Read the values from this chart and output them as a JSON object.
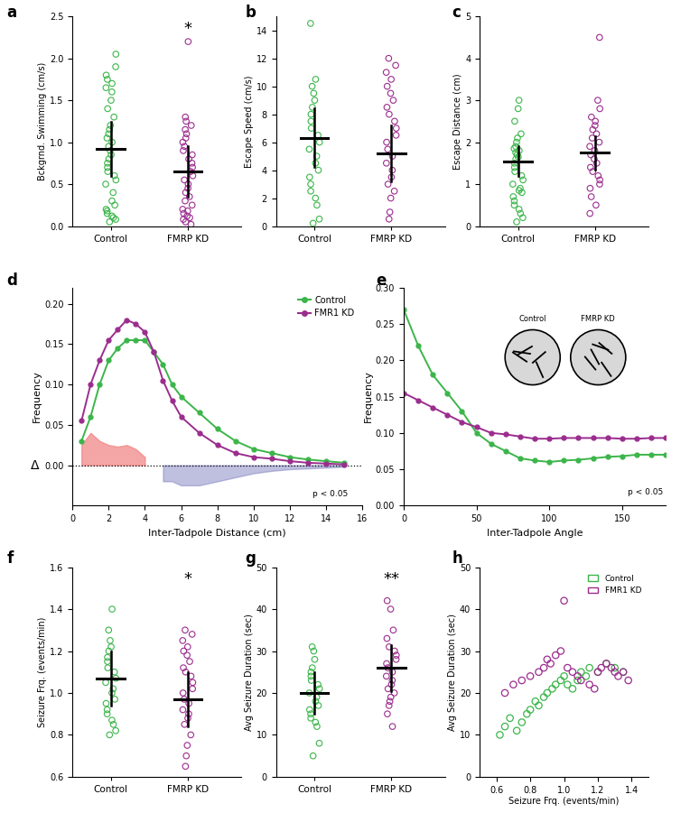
{
  "green": "#3cb54a",
  "purple": "#9b2d8e",
  "panel_a": {
    "control_mean": 0.92,
    "control_sem": 0.32,
    "fmrp_mean": 0.65,
    "fmrp_sem": 0.3,
    "control_pts": [
      0.05,
      0.08,
      0.1,
      0.12,
      0.15,
      0.18,
      0.2,
      0.25,
      0.3,
      0.4,
      0.5,
      0.55,
      0.6,
      0.65,
      0.7,
      0.75,
      0.8,
      0.85,
      0.9,
      0.95,
      1.0,
      1.05,
      1.1,
      1.15,
      1.2,
      1.3,
      1.4,
      1.5,
      1.6,
      1.65,
      1.7,
      1.75,
      1.8,
      1.9,
      2.05
    ],
    "fmrp_pts": [
      0.02,
      0.05,
      0.08,
      0.1,
      0.12,
      0.15,
      0.18,
      0.2,
      0.25,
      0.3,
      0.35,
      0.4,
      0.45,
      0.5,
      0.55,
      0.6,
      0.65,
      0.7,
      0.75,
      0.8,
      0.85,
      0.9,
      0.95,
      1.0,
      1.05,
      1.1,
      1.15,
      1.2,
      1.25,
      1.3,
      2.2
    ],
    "ylabel": "Bckgrnd. Swimming (cm/s)",
    "ylim": [
      0,
      2.5
    ],
    "yticks": [
      0.0,
      0.5,
      1.0,
      1.5,
      2.0,
      2.5
    ],
    "significance": "*"
  },
  "panel_b": {
    "control_mean": 6.3,
    "control_sem": 2.1,
    "fmrp_mean": 5.2,
    "fmrp_sem": 2.0,
    "control_pts": [
      0.2,
      0.5,
      1.5,
      2.0,
      2.5,
      3.0,
      3.5,
      4.0,
      4.5,
      5.0,
      5.5,
      6.0,
      6.5,
      7.0,
      7.5,
      8.0,
      8.5,
      9.0,
      9.5,
      10.0,
      10.5,
      14.5
    ],
    "fmrp_pts": [
      0.5,
      1.0,
      2.0,
      2.5,
      3.0,
      3.5,
      4.0,
      4.5,
      5.0,
      5.5,
      6.0,
      6.5,
      7.0,
      7.5,
      8.0,
      8.5,
      9.0,
      9.5,
      10.0,
      10.5,
      11.0,
      11.5,
      12.0
    ],
    "ylabel": "Escape Speed (cm/s)",
    "ylim": [
      0,
      15
    ],
    "yticks": [
      0,
      2,
      4,
      6,
      8,
      10,
      12,
      14
    ]
  },
  "panel_c": {
    "control_mean": 1.55,
    "control_sem": 0.35,
    "fmrp_mean": 1.75,
    "fmrp_sem": 0.4,
    "control_pts": [
      0.1,
      0.2,
      0.3,
      0.4,
      0.5,
      0.6,
      0.7,
      0.8,
      0.85,
      0.9,
      1.0,
      1.1,
      1.2,
      1.3,
      1.4,
      1.5,
      1.6,
      1.65,
      1.7,
      1.75,
      1.8,
      1.85,
      1.9,
      2.0,
      2.1,
      2.2,
      2.5,
      2.8,
      3.0
    ],
    "fmrp_pts": [
      0.3,
      0.5,
      0.7,
      0.9,
      1.0,
      1.1,
      1.2,
      1.3,
      1.4,
      1.5,
      1.6,
      1.7,
      1.8,
      1.9,
      2.0,
      2.1,
      2.2,
      2.3,
      2.4,
      2.5,
      2.6,
      2.8,
      3.0,
      4.5
    ],
    "ylabel": "Escape Distance (cm)",
    "ylim": [
      0,
      5
    ],
    "yticks": [
      0,
      1,
      2,
      3,
      4,
      5
    ]
  },
  "panel_d": {
    "x": [
      0.5,
      1,
      1.5,
      2,
      2.5,
      3,
      3.5,
      4,
      4.5,
      5,
      5.5,
      6,
      7,
      8,
      9,
      10,
      11,
      12,
      13,
      14,
      15
    ],
    "control_y": [
      0.03,
      0.06,
      0.1,
      0.13,
      0.145,
      0.155,
      0.155,
      0.155,
      0.14,
      0.125,
      0.1,
      0.085,
      0.065,
      0.045,
      0.03,
      0.02,
      0.015,
      0.01,
      0.007,
      0.005,
      0.003
    ],
    "fmrp_y": [
      0.055,
      0.1,
      0.13,
      0.155,
      0.168,
      0.18,
      0.175,
      0.165,
      0.14,
      0.105,
      0.08,
      0.06,
      0.04,
      0.025,
      0.015,
      0.01,
      0.008,
      0.005,
      0.003,
      0.002,
      0.001
    ],
    "xlabel": "Inter-Tadpole Distance (cm)",
    "ylabel": "Frequency",
    "ylim": [
      -0.05,
      0.22
    ],
    "yticks": [
      0.0,
      0.05,
      0.1,
      0.15,
      0.2
    ],
    "xlim": [
      0,
      16
    ],
    "xticks": [
      0,
      2,
      4,
      6,
      8,
      10,
      12,
      14,
      16
    ]
  },
  "panel_e": {
    "x": [
      0,
      10,
      20,
      30,
      40,
      50,
      60,
      70,
      80,
      90,
      100,
      110,
      120,
      130,
      140,
      150,
      160,
      170,
      180
    ],
    "control_y": [
      0.27,
      0.22,
      0.18,
      0.155,
      0.13,
      0.1,
      0.085,
      0.075,
      0.065,
      0.062,
      0.06,
      0.062,
      0.063,
      0.065,
      0.067,
      0.068,
      0.07,
      0.07,
      0.07
    ],
    "fmrp_y": [
      0.155,
      0.145,
      0.135,
      0.125,
      0.115,
      0.108,
      0.1,
      0.098,
      0.095,
      0.092,
      0.092,
      0.093,
      0.093,
      0.093,
      0.093,
      0.092,
      0.092,
      0.093,
      0.093
    ],
    "xlabel": "Inter-Tadpole Angle",
    "ylabel": "Frequency",
    "ylim": [
      0.0,
      0.3
    ],
    "yticks": [
      0.0,
      0.05,
      0.1,
      0.15,
      0.2,
      0.25,
      0.3
    ],
    "xlim": [
      0,
      180
    ],
    "xticks": [
      0,
      50,
      100,
      150
    ]
  },
  "panel_f": {
    "control_mean": 1.07,
    "control_sem": 0.13,
    "fmrp_mean": 0.97,
    "fmrp_sem": 0.13,
    "control_pts": [
      0.8,
      0.82,
      0.85,
      0.87,
      0.9,
      0.92,
      0.95,
      0.97,
      1.0,
      1.02,
      1.05,
      1.07,
      1.1,
      1.12,
      1.15,
      1.17,
      1.2,
      1.22,
      1.25,
      1.3,
      1.4
    ],
    "fmrp_pts": [
      0.58,
      0.65,
      0.7,
      0.75,
      0.8,
      0.85,
      0.88,
      0.9,
      0.92,
      0.95,
      0.97,
      1.0,
      1.02,
      1.05,
      1.08,
      1.1,
      1.12,
      1.15,
      1.18,
      1.2,
      1.22,
      1.25,
      1.28,
      1.3
    ],
    "ylabel": "Seizure Frq. (events/min)",
    "ylim": [
      0.6,
      1.6
    ],
    "yticks": [
      0.6,
      0.8,
      1.0,
      1.2,
      1.4,
      1.6
    ],
    "significance": "*"
  },
  "panel_g": {
    "control_mean": 20.0,
    "control_sem": 5.0,
    "fmrp_mean": 26.0,
    "fmrp_sem": 5.5,
    "control_pts": [
      5.0,
      8.0,
      12.0,
      13.0,
      14.0,
      15.0,
      16.0,
      17.0,
      18.0,
      19.0,
      20.0,
      21.0,
      22.0,
      23.0,
      24.0,
      25.0,
      26.0,
      28.0,
      30.0,
      31.0
    ],
    "fmrp_pts": [
      12.0,
      15.0,
      17.0,
      18.0,
      19.0,
      20.0,
      21.0,
      22.0,
      23.0,
      24.0,
      25.0,
      26.0,
      27.0,
      28.0,
      29.0,
      30.0,
      31.0,
      33.0,
      35.0,
      40.0,
      42.0
    ],
    "ylabel": "Avg Seizure Duration (sec)",
    "ylim": [
      0,
      50
    ],
    "yticks": [
      0,
      10,
      20,
      30,
      40,
      50
    ],
    "significance": "**"
  },
  "panel_h": {
    "control_x": [
      0.62,
      0.65,
      0.68,
      0.72,
      0.75,
      0.78,
      0.8,
      0.83,
      0.85,
      0.88,
      0.9,
      0.93,
      0.95,
      0.98,
      1.0,
      1.02,
      1.05,
      1.08,
      1.1,
      1.13,
      1.15,
      1.2,
      1.25,
      1.3,
      1.35
    ],
    "control_y": [
      10.0,
      12.0,
      14.0,
      11.0,
      13.0,
      15.0,
      16.0,
      18.0,
      17.0,
      19.0,
      20.0,
      21.0,
      22.0,
      23.0,
      24.0,
      22.0,
      21.0,
      23.0,
      25.0,
      24.0,
      26.0,
      25.0,
      27.0,
      26.0,
      25.0
    ],
    "fmrp_x": [
      0.65,
      0.7,
      0.75,
      0.8,
      0.85,
      0.88,
      0.9,
      0.92,
      0.95,
      0.98,
      1.0,
      1.02,
      1.05,
      1.08,
      1.1,
      1.15,
      1.18,
      1.2,
      1.22,
      1.25,
      1.28,
      1.3,
      1.32,
      1.35,
      1.38
    ],
    "fmrp_y": [
      20.0,
      22.0,
      23.0,
      24.0,
      25.0,
      26.0,
      28.0,
      27.0,
      29.0,
      30.0,
      42.0,
      26.0,
      25.0,
      24.0,
      23.0,
      22.0,
      21.0,
      25.0,
      26.0,
      27.0,
      26.0,
      25.0,
      24.0,
      25.0,
      23.0
    ],
    "xlabel": "Seizure Frq. (events/min)",
    "ylabel": "Avg Seizure Duration (sec)",
    "xlim": [
      0.5,
      1.5
    ],
    "ylim": [
      0,
      50
    ],
    "xticks": [
      0.6,
      0.8,
      1.0,
      1.2,
      1.4
    ],
    "yticks": [
      0,
      10,
      20,
      30,
      40,
      50
    ]
  }
}
